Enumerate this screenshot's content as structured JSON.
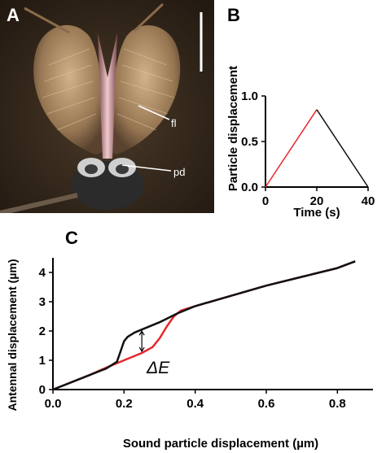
{
  "panels": {
    "a": {
      "letter": "A",
      "labels": {
        "fl": "fl",
        "pd": "pd"
      }
    },
    "b": {
      "letter": "B"
    },
    "c": {
      "letter": "C"
    }
  },
  "chart_data": [
    {
      "panel": "B",
      "type": "line",
      "xlabel": "Time (s)",
      "ylabel": "Particle displacement",
      "xlim": [
        0,
        40
      ],
      "ylim": [
        0,
        1.0
      ],
      "xticks": [
        "0",
        "20",
        "40"
      ],
      "yticks": [
        "0.0",
        "0.5",
        "1.0"
      ],
      "series": [
        {
          "color": "#e8262b",
          "x": [
            0,
            20
          ],
          "y": [
            0.0,
            0.85
          ]
        },
        {
          "color": "#111111",
          "x": [
            20,
            40
          ],
          "y": [
            0.85,
            0.0
          ]
        }
      ]
    },
    {
      "panel": "C",
      "type": "line",
      "xlabel": "Sound particle displacement (µm)",
      "ylabel": "Antennal displacement (µm)",
      "xlim": [
        0,
        0.9
      ],
      "ylim": [
        0,
        4.5
      ],
      "xticks": [
        "0.0",
        "0.2",
        "0.4",
        "0.6",
        "0.8"
      ],
      "yticks": [
        "0",
        "1",
        "2",
        "3",
        "4"
      ],
      "annotation": "ΔE",
      "series": [
        {
          "color": "#e8262b",
          "x": [
            0,
            0.1,
            0.15,
            0.2,
            0.25,
            0.28,
            0.3,
            0.32,
            0.34,
            0.36,
            0.4,
            0.5,
            0.6,
            0.7,
            0.8,
            0.85
          ],
          "y": [
            0,
            0.48,
            0.75,
            1.0,
            1.25,
            1.45,
            1.75,
            2.15,
            2.5,
            2.7,
            2.85,
            3.2,
            3.55,
            3.85,
            4.15,
            4.38
          ]
        },
        {
          "color": "#111111",
          "x": [
            0,
            0.1,
            0.15,
            0.18,
            0.19,
            0.2,
            0.21,
            0.23,
            0.25,
            0.3,
            0.35,
            0.4,
            0.5,
            0.6,
            0.7,
            0.8,
            0.85
          ],
          "y": [
            0,
            0.48,
            0.72,
            0.95,
            1.3,
            1.65,
            1.8,
            1.95,
            2.05,
            2.3,
            2.6,
            2.85,
            3.2,
            3.55,
            3.85,
            4.15,
            4.38
          ]
        }
      ]
    }
  ]
}
